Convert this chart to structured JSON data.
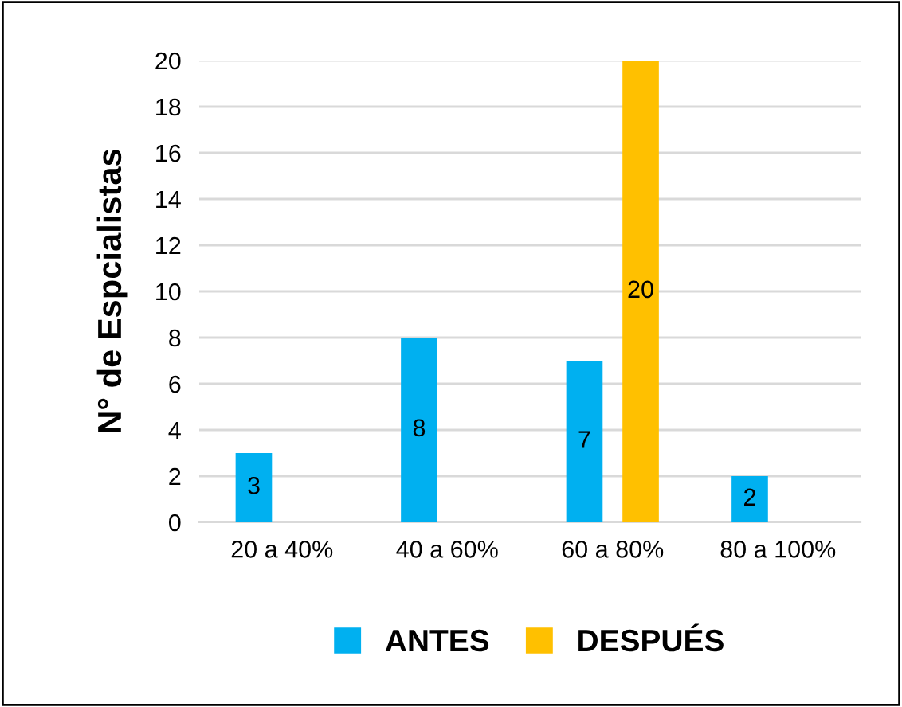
{
  "chart_data": {
    "type": "bar",
    "ylabel": "N° de Espcialistas",
    "categories": [
      "20 a 40%",
      "40 a 60%",
      "60 a 80%",
      "80 a 100%"
    ],
    "series": [
      {
        "name": "ANTES",
        "color": "#00b0f0",
        "values": [
          3,
          8,
          7,
          2
        ]
      },
      {
        "name": "DESPUÉS",
        "color": "#ffc000",
        "values": [
          null,
          null,
          20,
          null
        ]
      }
    ],
    "ylim": [
      0,
      20
    ],
    "yticks": [
      0,
      2,
      4,
      6,
      8,
      10,
      12,
      14,
      16,
      18,
      20
    ],
    "grid": "y",
    "legend": "bottom",
    "data_labels": true
  }
}
